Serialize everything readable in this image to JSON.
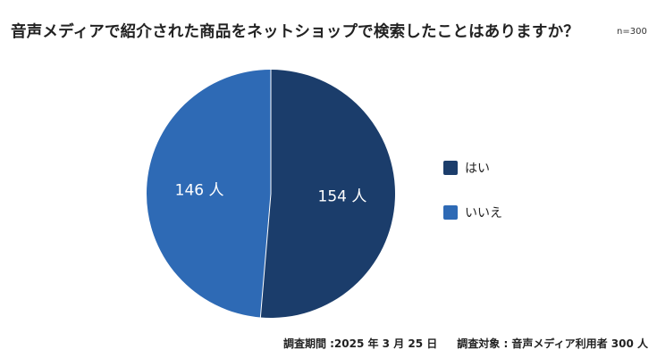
{
  "title": "音声メディアで紹介された商品をネットショップで検索したことはありますか？",
  "sample_size": "n=300",
  "colors": {
    "hai": "#1b3d6b",
    "iie": "#2e6ab5",
    "label_text": "#ffffff",
    "separator": "#ffffff"
  },
  "chart_data": {
    "type": "pie",
    "title": "音声メディアで紹介された商品をネットショップで検索したことはありますか？",
    "unit": "人",
    "start_angle_deg": 0,
    "direction": "clockwise",
    "legend_position": "right",
    "slices": [
      {
        "label": "はい",
        "value": 154,
        "data_label": "154 人",
        "color": "#1b3d6b"
      },
      {
        "label": "いいえ",
        "value": 146,
        "data_label": "146 人",
        "color": "#2e6ab5"
      }
    ]
  },
  "footer": {
    "survey_period": "調査期間 :2025 年 3 月 25 日",
    "survey_target": "調査対象 : 音声メディア利用者 300 人"
  }
}
